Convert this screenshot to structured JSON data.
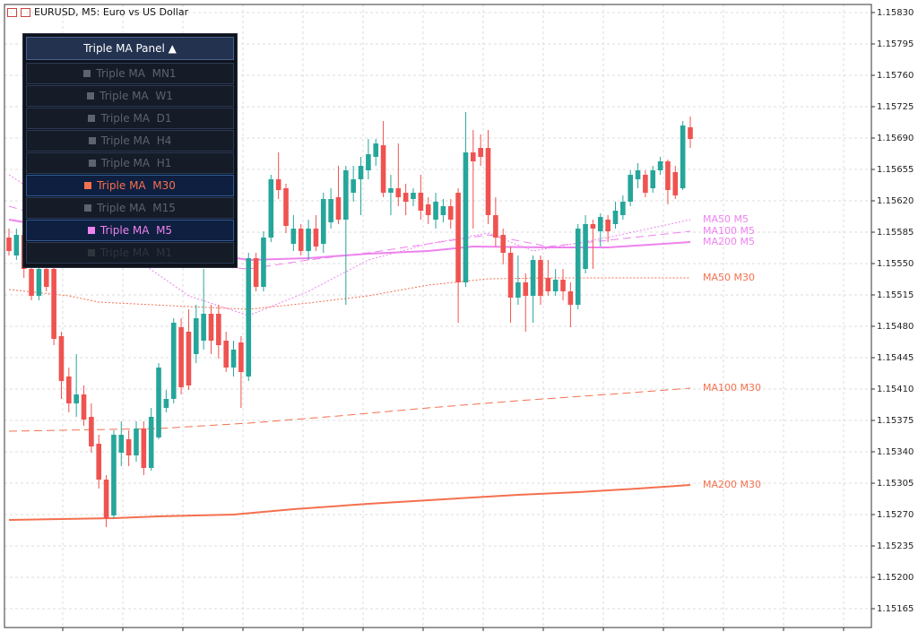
{
  "header": {
    "title": "EURUSD, M5:  Euro vs US Dollar"
  },
  "panel": {
    "title": "Triple MA Panel ▲",
    "buttons": [
      {
        "label": "Triple MA  MN1",
        "state": "inactive"
      },
      {
        "label": "Triple MA  W1",
        "state": "inactive"
      },
      {
        "label": "Triple MA  D1",
        "state": "inactive"
      },
      {
        "label": "Triple MA  H4",
        "state": "inactive"
      },
      {
        "label": "Triple MA  H1",
        "state": "inactive"
      },
      {
        "label": "Triple MA  M30",
        "state": "active",
        "color": "#f4704f"
      },
      {
        "label": "Triple MA  M15",
        "state": "inactive"
      },
      {
        "label": "Triple MA  M5",
        "state": "active",
        "color": "#ee82ee"
      },
      {
        "label": "Triple MA  M1",
        "state": "disabled"
      }
    ]
  },
  "chart_data": {
    "type": "candlestick",
    "up_color": "#26a69a",
    "down_color": "#ef5350",
    "grid": true,
    "ylim": [
      1.15144,
      1.15839
    ],
    "yticks": [
      {
        "value": 1.1583,
        "label": "1.15830"
      },
      {
        "value": 1.15795,
        "label": "1.15795"
      },
      {
        "value": 1.1576,
        "label": "1.15760"
      },
      {
        "value": 1.15725,
        "label": "1.15725"
      },
      {
        "value": 1.1569,
        "label": "1.15690"
      },
      {
        "value": 1.15655,
        "label": "1.15655"
      },
      {
        "value": 1.1562,
        "label": "1.15620"
      },
      {
        "value": 1.15585,
        "label": "1.15585"
      },
      {
        "value": 1.1555,
        "label": "1.15550"
      },
      {
        "value": 1.15515,
        "label": "1.15515"
      },
      {
        "value": 1.1548,
        "label": "1.15480"
      },
      {
        "value": 1.15445,
        "label": "1.15445"
      },
      {
        "value": 1.1541,
        "label": "1.15410"
      },
      {
        "value": 1.15375,
        "label": "1.15375"
      },
      {
        "value": 1.1534,
        "label": "1.15340"
      },
      {
        "value": 1.15305,
        "label": "1.15305"
      },
      {
        "value": 1.1527,
        "label": "1.15270"
      },
      {
        "value": 1.15235,
        "label": "1.15235"
      },
      {
        "value": 1.152,
        "label": "1.15200"
      },
      {
        "value": 1.15165,
        "label": "1.15165"
      }
    ],
    "open": [
      1.15579,
      1.15559,
      1.15582,
      1.15544,
      1.15514,
      1.15544,
      1.15544,
      1.15469,
      1.15424,
      1.15394,
      1.15404,
      1.15379,
      1.15349,
      1.15309,
      1.15269,
      1.15339,
      1.15354,
      1.15336,
      1.15366,
      1.15322,
      1.15356,
      1.15389,
      1.15399,
      1.15479,
      1.15474,
      1.15449,
      1.15464,
      1.15494,
      1.15494,
      1.15464,
      1.15434,
      1.15462,
      1.15424,
      1.15556,
      1.15524,
      1.15579,
      1.15644,
      1.15634,
      1.15572,
      1.15589,
      1.15564,
      1.15589,
      1.15572,
      1.15596,
      1.15624,
      1.15599,
      1.15629,
      1.15644,
      1.15654,
      1.15669,
      1.15682,
      1.15629,
      1.15634,
      1.15629,
      1.15622,
      1.15629,
      1.15616,
      1.15599,
      1.15604,
      1.15614,
      1.15629,
      1.15529,
      1.15674,
      1.15679,
      1.15679,
      1.15604,
      1.15582,
      1.15562,
      1.15512,
      1.15529,
      1.15514,
      1.15554,
      1.15534,
      1.15519,
      1.15532,
      1.15519,
      1.15504,
      1.15544,
      1.15594,
      1.15586,
      1.15599,
      1.15594,
      1.15604,
      1.15619,
      1.15644,
      1.15649,
      1.15634,
      1.15654,
      1.15664,
      1.15652,
      1.15634,
      1.15702
    ],
    "high": [
      1.15589,
      1.15589,
      1.15594,
      1.15554,
      1.15549,
      1.15554,
      1.15554,
      1.15474,
      1.15434,
      1.15449,
      1.15414,
      1.15394,
      1.15359,
      1.15314,
      1.15364,
      1.15374,
      1.15364,
      1.15374,
      1.15374,
      1.15389,
      1.15439,
      1.15409,
      1.15489,
      1.15489,
      1.15499,
      1.15504,
      1.15544,
      1.15504,
      1.15504,
      1.15474,
      1.15464,
      1.15469,
      1.15562,
      1.15562,
      1.15586,
      1.15649,
      1.15674,
      1.15639,
      1.15604,
      1.15594,
      1.15599,
      1.15604,
      1.15629,
      1.15634,
      1.15659,
      1.15659,
      1.15659,
      1.15669,
      1.15689,
      1.15689,
      1.15709,
      1.15649,
      1.15684,
      1.15639,
      1.15634,
      1.15649,
      1.15624,
      1.15629,
      1.15622,
      1.15622,
      1.15634,
      1.15719,
      1.15699,
      1.15694,
      1.15699,
      1.15624,
      1.15589,
      1.15569,
      1.15559,
      1.15539,
      1.15559,
      1.15559,
      1.15554,
      1.15544,
      1.15544,
      1.15529,
      1.15594,
      1.15604,
      1.15599,
      1.15606,
      1.15604,
      1.15619,
      1.15626,
      1.15654,
      1.15662,
      1.15654,
      1.15659,
      1.15669,
      1.15666,
      1.15659,
      1.15709,
      1.15714
    ],
    "low": [
      1.15559,
      1.15554,
      1.15534,
      1.15509,
      1.15509,
      1.15519,
      1.15459,
      1.15399,
      1.15384,
      1.15379,
      1.15369,
      1.15339,
      1.15299,
      1.15256,
      1.15266,
      1.15324,
      1.15324,
      1.15329,
      1.15314,
      1.15319,
      1.15354,
      1.15384,
      1.15394,
      1.15404,
      1.15409,
      1.15439,
      1.15454,
      1.15449,
      1.15444,
      1.15429,
      1.15424,
      1.15389,
      1.15419,
      1.15519,
      1.15519,
      1.15574,
      1.15622,
      1.15584,
      1.15564,
      1.15559,
      1.15554,
      1.15564,
      1.15562,
      1.15589,
      1.15594,
      1.15504,
      1.15619,
      1.15604,
      1.15644,
      1.15659,
      1.15624,
      1.15604,
      1.15614,
      1.15604,
      1.15614,
      1.15599,
      1.15594,
      1.15589,
      1.15596,
      1.15589,
      1.15484,
      1.15524,
      1.15589,
      1.15659,
      1.15594,
      1.15569,
      1.15549,
      1.15484,
      1.15504,
      1.15474,
      1.15484,
      1.15504,
      1.15514,
      1.15514,
      1.15509,
      1.15479,
      1.15499,
      1.15539,
      1.15544,
      1.15569,
      1.15574,
      1.15589,
      1.15599,
      1.15614,
      1.15634,
      1.15624,
      1.15629,
      1.15649,
      1.15616,
      1.15622,
      1.15632,
      1.15679
    ],
    "close": [
      1.15564,
      1.15582,
      1.15544,
      1.15514,
      1.15544,
      1.15524,
      1.15466,
      1.15419,
      1.15394,
      1.15404,
      1.15376,
      1.15346,
      1.15309,
      1.15266,
      1.15359,
      1.15359,
      1.15336,
      1.15366,
      1.15322,
      1.15379,
      1.15434,
      1.15399,
      1.15484,
      1.15412,
      1.15414,
      1.15489,
      1.15494,
      1.15464,
      1.15459,
      1.15434,
      1.15454,
      1.15429,
      1.15556,
      1.15524,
      1.15579,
      1.15644,
      1.15632,
      1.15592,
      1.15589,
      1.15564,
      1.15589,
      1.15569,
      1.15622,
      1.15622,
      1.15599,
      1.15654,
      1.15644,
      1.15659,
      1.15672,
      1.15684,
      1.15629,
      1.15634,
      1.15624,
      1.15619,
      1.15629,
      1.15609,
      1.15604,
      1.15619,
      1.15614,
      1.15599,
      1.15529,
      1.15674,
      1.15664,
      1.15669,
      1.15604,
      1.15579,
      1.15562,
      1.15512,
      1.15529,
      1.15514,
      1.15554,
      1.15514,
      1.15519,
      1.15532,
      1.15519,
      1.15504,
      1.15589,
      1.15594,
      1.15589,
      1.15602,
      1.15586,
      1.15609,
      1.15619,
      1.15649,
      1.15654,
      1.15629,
      1.15654,
      1.15664,
      1.15632,
      1.15626,
      1.15704,
      1.15689
    ],
    "series": [
      {
        "name": "MA50 M5",
        "color": "#ee82ee",
        "style": "dotted",
        "x": [
          0,
          12,
          24,
          32,
          40,
          48,
          56,
          64,
          70,
          80,
          91
        ],
        "values": [
          1.15649,
          1.15584,
          1.15514,
          1.15492,
          1.15519,
          1.15554,
          1.15572,
          1.15584,
          1.15564,
          1.15579,
          1.15599
        ]
      },
      {
        "name": "MA100 M5",
        "color": "#ee82ee",
        "style": "dashed",
        "x": [
          0,
          12,
          24,
          32,
          40,
          48,
          56,
          64,
          72,
          80,
          91
        ],
        "values": [
          1.15614,
          1.15584,
          1.15549,
          1.15544,
          1.15554,
          1.15562,
          1.15572,
          1.15582,
          1.15569,
          1.15576,
          1.15586
        ]
      },
      {
        "name": "MA200 M5",
        "color": "#ee82ee",
        "style": "solid",
        "x": [
          0,
          12,
          24,
          32,
          40,
          48,
          56,
          62,
          72,
          80,
          91
        ],
        "values": [
          1.15599,
          1.15582,
          1.15564,
          1.15554,
          1.15556,
          1.15561,
          1.15564,
          1.15569,
          1.15568,
          1.15568,
          1.15574
        ]
      },
      {
        "name": "MA50 M30",
        "color": "#f4704f",
        "style": "dotted",
        "x": [
          0,
          8,
          12,
          24,
          32,
          40,
          48,
          56,
          64,
          72,
          91
        ],
        "values": [
          1.15521,
          1.15514,
          1.15507,
          1.15502,
          1.15499,
          1.15506,
          1.15514,
          1.15526,
          1.15533,
          1.15534,
          1.15534
        ]
      },
      {
        "name": "MA100 M30",
        "color": "#f4704f",
        "style": "dashed",
        "x": [
          0,
          20,
          32,
          44,
          56,
          68,
          80,
          91
        ],
        "values": [
          1.15363,
          1.15366,
          1.15372,
          1.1538,
          1.15389,
          1.15397,
          1.15404,
          1.15411
        ]
      },
      {
        "name": "MA200 M30",
        "color": "#f4704f",
        "style": "solid",
        "x": [
          0,
          14,
          20,
          30,
          38,
          48,
          58,
          68,
          76,
          84,
          91
        ],
        "values": [
          1.15264,
          1.15266,
          1.15268,
          1.1527,
          1.15276,
          1.15282,
          1.15287,
          1.15292,
          1.15295,
          1.15299,
          1.15303
        ]
      }
    ]
  }
}
